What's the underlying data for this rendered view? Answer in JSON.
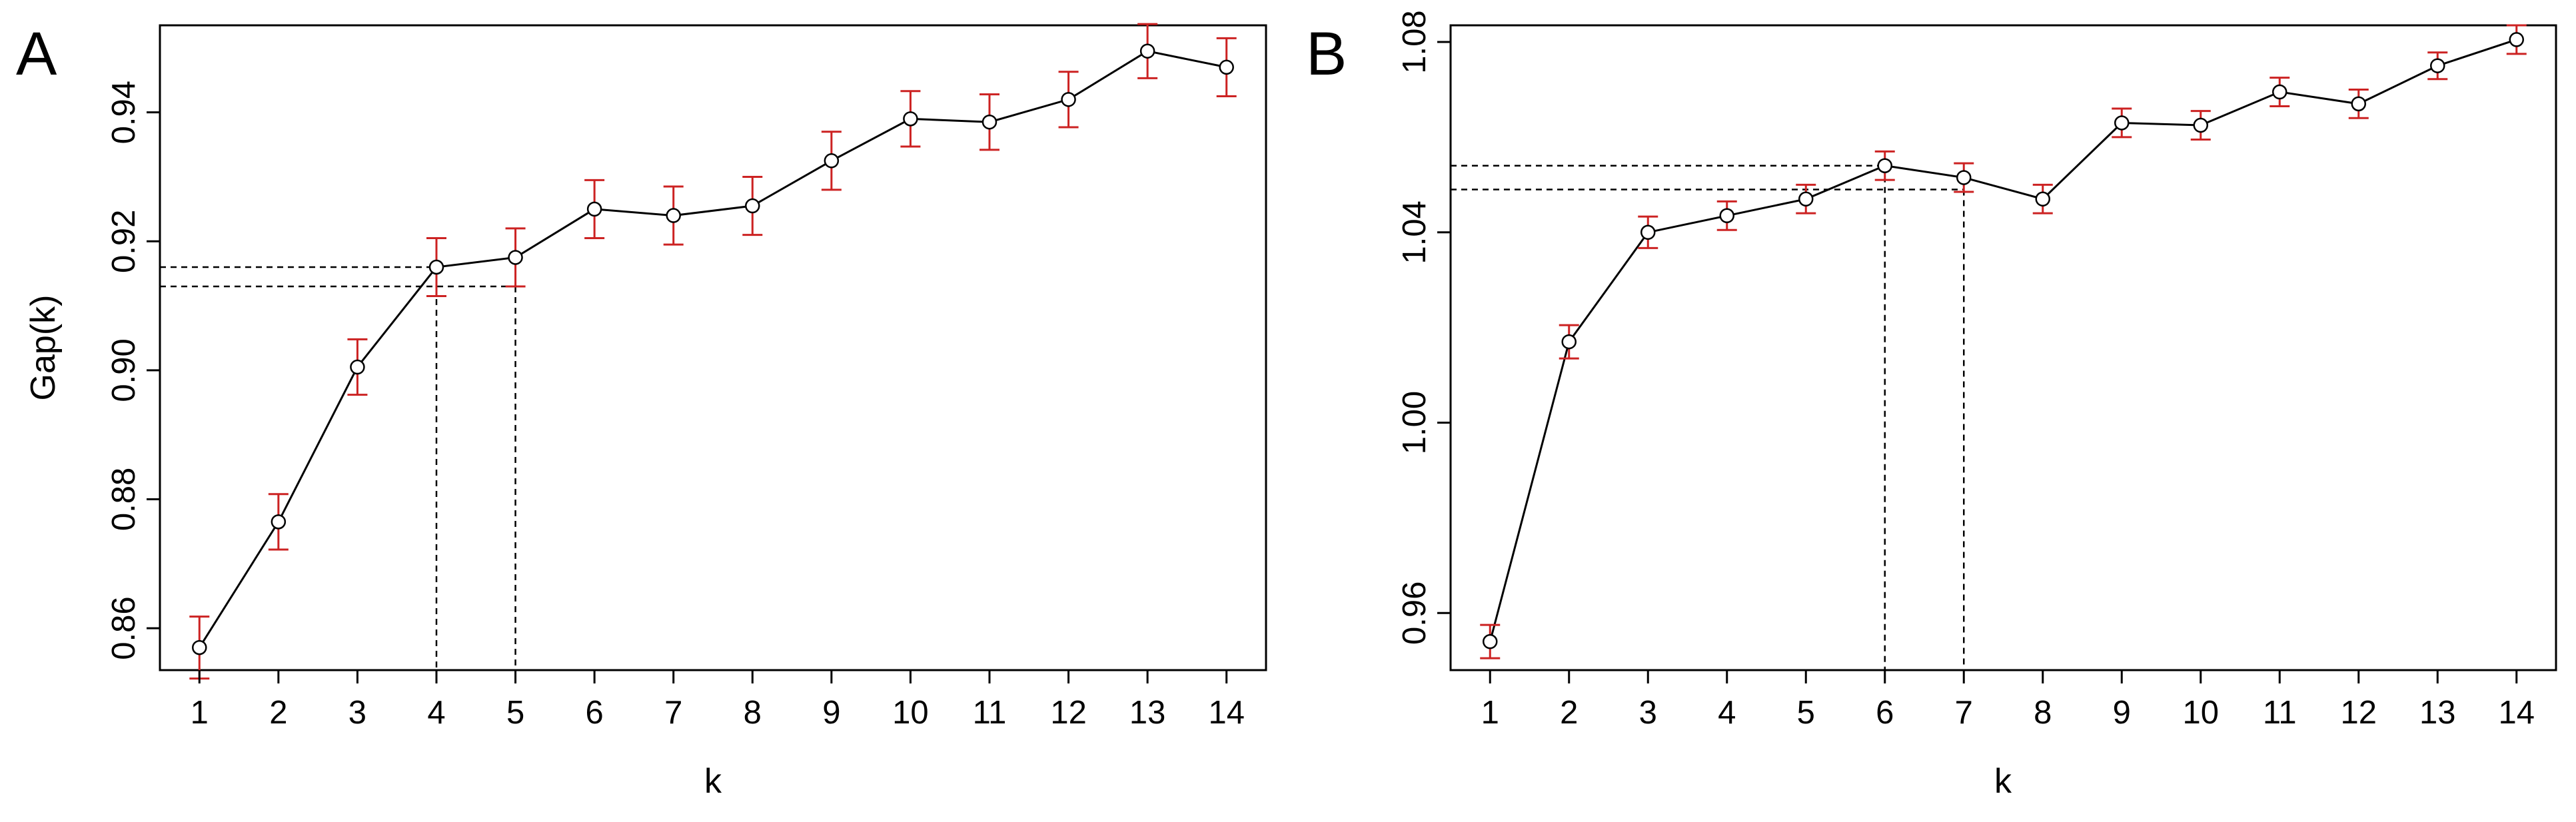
{
  "chart_data": [
    {
      "panel": "A",
      "type": "line",
      "xlabel": "k",
      "ylabel": "Gap(k)",
      "x": [
        1,
        2,
        3,
        4,
        5,
        6,
        7,
        8,
        9,
        10,
        11,
        12,
        13,
        14
      ],
      "y": [
        0.857,
        0.8765,
        0.9005,
        0.916,
        0.9175,
        0.925,
        0.924,
        0.9255,
        0.9325,
        0.939,
        0.9385,
        0.942,
        0.9495,
        0.947
      ],
      "error": [
        0.0048,
        0.0043,
        0.0043,
        0.0045,
        0.0045,
        0.0045,
        0.0045,
        0.0045,
        0.0045,
        0.0043,
        0.0043,
        0.0043,
        0.0042,
        0.0045
      ],
      "xticks": [
        1,
        2,
        3,
        4,
        5,
        6,
        7,
        8,
        9,
        10,
        11,
        12,
        13,
        14
      ],
      "yticks": [
        0.86,
        0.88,
        0.9,
        0.92,
        0.94
      ],
      "ytick_labels": [
        "0.86",
        "0.88",
        "0.90",
        "0.92",
        "0.94"
      ],
      "xlim": [
        0.5,
        14.5
      ],
      "ylim": [
        0.8535,
        0.9535
      ],
      "reference_lines": [
        {
          "k": 4,
          "y": 0.916
        },
        {
          "k": 5,
          "y": 0.913
        }
      ],
      "grid": false,
      "line_color": "#000000",
      "error_bar_color": "#cc2222"
    },
    {
      "panel": "B",
      "type": "line",
      "xlabel": "k",
      "ylabel": "",
      "x": [
        1,
        2,
        3,
        4,
        5,
        6,
        7,
        8,
        9,
        10,
        11,
        12,
        13,
        14
      ],
      "y": [
        0.954,
        1.017,
        1.04,
        1.0435,
        1.047,
        1.054,
        1.0515,
        1.047,
        1.063,
        1.0625,
        1.0695,
        1.067,
        1.075,
        1.0805
      ],
      "error": [
        0.0035,
        0.0035,
        0.0033,
        0.003,
        0.003,
        0.003,
        0.003,
        0.003,
        0.003,
        0.003,
        0.003,
        0.003,
        0.0028,
        0.003
      ],
      "xticks": [
        1,
        2,
        3,
        4,
        5,
        6,
        7,
        8,
        9,
        10,
        11,
        12,
        13,
        14
      ],
      "yticks": [
        0.96,
        1.0,
        1.04,
        1.08
      ],
      "ytick_labels": [
        "0.96",
        "1.00",
        "1.04",
        "1.08"
      ],
      "xlim": [
        0.5,
        14.5
      ],
      "ylim": [
        0.948,
        1.0835
      ],
      "reference_lines": [
        {
          "k": 6,
          "y": 1.054
        },
        {
          "k": 7,
          "y": 1.049
        }
      ],
      "grid": false,
      "line_color": "#000000",
      "error_bar_color": "#cc2222"
    }
  ]
}
